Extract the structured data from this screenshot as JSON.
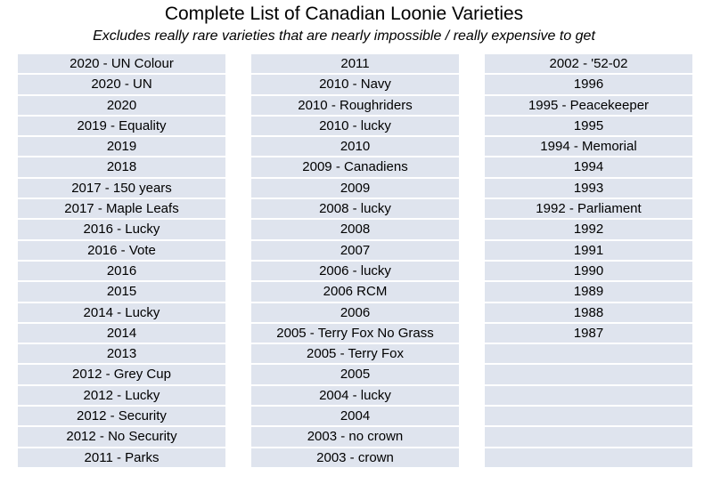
{
  "title": "Complete List of Canadian Loonie Varieties",
  "subtitle": "Excludes really rare varieties that are nearly impossible / really expensive to get",
  "columns": [
    [
      "2020 - UN Colour",
      "2020 - UN",
      "2020",
      "2019 - Equality",
      "2019",
      "2018",
      "2017 - 150 years",
      "2017 - Maple Leafs",
      "2016 - Lucky",
      "2016 - Vote",
      "2016",
      "2015",
      "2014 - Lucky",
      "2014",
      "2013",
      "2012 - Grey Cup",
      "2012 - Lucky",
      "2012 - Security",
      "2012 - No Security",
      "2011 - Parks"
    ],
    [
      "2011",
      "2010 - Navy",
      "2010 - Roughriders",
      "2010 - lucky",
      "2010",
      "2009 - Canadiens",
      "2009",
      "2008 - lucky",
      "2008",
      "2007",
      "2006 - lucky",
      "2006 RCM",
      "2006",
      "2005 - Terry Fox No Grass",
      "2005 - Terry Fox",
      "2005",
      "2004 - lucky",
      "2004",
      "2003 - no crown",
      "2003 - crown"
    ],
    [
      "2002 - '52-02",
      "1996",
      "1995 - Peacekeeper",
      "1995",
      "1994 - Memorial",
      "1994",
      "1993",
      "1992 - Parliament",
      "1992",
      "1991",
      "1990",
      "1989",
      "1988",
      "1987",
      "",
      "",
      "",
      "",
      "",
      ""
    ]
  ],
  "colors": {
    "cell_background": "#dfe4ee",
    "text": "#000000"
  }
}
